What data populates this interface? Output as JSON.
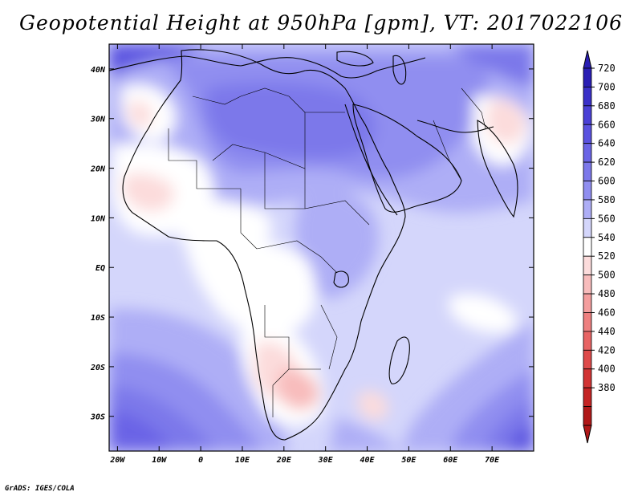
{
  "title": "Geopotential Height at 950hPa [gpm], VT: 2017022106",
  "credit": "GrADS: IGES/COLA",
  "axes": {
    "x_ticks": [
      "20W",
      "10W",
      "0",
      "10E",
      "20E",
      "30E",
      "40E",
      "50E",
      "60E",
      "70E"
    ],
    "y_ticks": [
      "40N",
      "30N",
      "20N",
      "10N",
      "EQ",
      "10S",
      "20S",
      "30S"
    ]
  },
  "colorbar": {
    "labels": [
      "720",
      "700",
      "680",
      "660",
      "640",
      "620",
      "600",
      "580",
      "560",
      "540",
      "520",
      "500",
      "480",
      "460",
      "440",
      "420",
      "400",
      "380"
    ],
    "colors": [
      "#2a1eb4",
      "#3a30c8",
      "#4a40d6",
      "#5a52e0",
      "#6a64e6",
      "#7c78ea",
      "#908ef0",
      "#aeaef6",
      "#d4d6fb",
      "#ffffff",
      "#fcdcdc",
      "#f8bcbc",
      "#f49e9e",
      "#ee8080",
      "#e86464",
      "#de4a4a",
      "#d23434",
      "#c42424",
      "#b01818"
    ]
  },
  "chart_data": {
    "type": "heatmap",
    "title": "Geopotential Height at 950hPa [gpm], VT: 2017022106",
    "variable": "Geopotential height at 950 hPa",
    "units": "gpm",
    "valid_time": "2017022106",
    "x_ticks": [
      "20W",
      "10W",
      "0",
      "10E",
      "20E",
      "30E",
      "40E",
      "50E",
      "60E",
      "70E"
    ],
    "y_ticks": [
      "40N",
      "30N",
      "20N",
      "10N",
      "EQ",
      "10S",
      "20S",
      "30S"
    ],
    "lon_range": [
      -22,
      80
    ],
    "lat_range": [
      -37,
      45
    ],
    "contour_levels": [
      380,
      400,
      420,
      440,
      460,
      480,
      500,
      520,
      540,
      560,
      580,
      600,
      620,
      640,
      660,
      680,
      700,
      720
    ],
    "colorbar_labels": [
      "720",
      "700",
      "680",
      "660",
      "640",
      "620",
      "600",
      "580",
      "560",
      "540",
      "520",
      "500",
      "480",
      "460",
      "440",
      "420",
      "400",
      "380"
    ]
  }
}
